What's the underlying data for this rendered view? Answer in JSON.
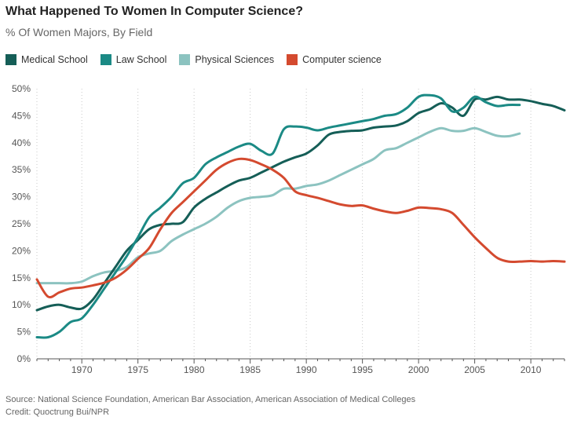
{
  "title": "What Happened To Women In Computer Science?",
  "subtitle": "% Of Women Majors, By Field",
  "source": "Source: National Science Foundation, American Bar Association, American Association of Medical Colleges",
  "credit": "Credit: Quoctrung Bui/NPR",
  "chart_data": {
    "type": "line",
    "xlim": [
      1966,
      2013
    ],
    "ylim": [
      0,
      50
    ],
    "xticks": [
      1970,
      1975,
      1980,
      1985,
      1990,
      1995,
      2000,
      2005,
      2010
    ],
    "yticks": [
      0,
      5,
      10,
      15,
      20,
      25,
      30,
      35,
      40,
      45,
      50
    ],
    "ytick_labels": [
      "0%",
      "5%",
      "10%",
      "15%",
      "20%",
      "25%",
      "30%",
      "35%",
      "40%",
      "45%",
      "50%"
    ],
    "xtick_labels": [
      "1970",
      "1975",
      "1980",
      "1985",
      "1990",
      "1995",
      "2000",
      "2005",
      "2010"
    ],
    "grid": "vertical dotted",
    "legend_position": "top-left",
    "series": [
      {
        "name": "Medical School",
        "color": "#155e57",
        "x": [
          1966,
          1967,
          1968,
          1969,
          1970,
          1971,
          1972,
          1973,
          1974,
          1975,
          1976,
          1977,
          1978,
          1979,
          1980,
          1981,
          1982,
          1983,
          1984,
          1985,
          1986,
          1987,
          1988,
          1989,
          1990,
          1991,
          1992,
          1993,
          1994,
          1995,
          1996,
          1997,
          1998,
          1999,
          2000,
          2001,
          2002,
          2003,
          2004,
          2005,
          2006,
          2007,
          2008,
          2009,
          2010,
          2011,
          2012,
          2013
        ],
        "y": [
          9,
          9.7,
          10,
          9.5,
          9.3,
          11,
          14,
          17,
          20,
          22,
          24,
          24.8,
          25,
          25.3,
          28,
          29.6,
          30.8,
          32,
          33,
          33.5,
          34.5,
          35.5,
          36.5,
          37.3,
          38,
          39.5,
          41.5,
          42,
          42.2,
          42.3,
          42.8,
          43,
          43.2,
          44,
          45.5,
          46.2,
          47.3,
          46.5,
          45,
          48,
          48,
          48.5,
          48,
          48,
          47.7,
          47.2,
          46.8,
          46
        ]
      },
      {
        "name": "Law School",
        "color": "#1b8a85",
        "x": [
          1966,
          1967,
          1968,
          1969,
          1970,
          1971,
          1972,
          1973,
          1974,
          1975,
          1976,
          1977,
          1978,
          1979,
          1980,
          1981,
          1982,
          1983,
          1984,
          1985,
          1986,
          1987,
          1988,
          1989,
          1990,
          1991,
          1992,
          1993,
          1994,
          1995,
          1996,
          1997,
          1998,
          1999,
          2000,
          2001,
          2002,
          2003,
          2004,
          2005,
          2006,
          2007,
          2008,
          2009
        ],
        "y": [
          4,
          4,
          5,
          6.8,
          7.5,
          10,
          13,
          16,
          19,
          22.5,
          26.2,
          28,
          30,
          32.5,
          33.5,
          36,
          37.3,
          38.3,
          39.3,
          39.8,
          38.5,
          38,
          42.5,
          43,
          42.8,
          42.3,
          42.8,
          43.2,
          43.6,
          44,
          44.4,
          45,
          45.3,
          46.5,
          48.5,
          48.8,
          48.2,
          45.8,
          46.5,
          48.5,
          47.5,
          46.8,
          47,
          47
        ]
      },
      {
        "name": "Physical Sciences",
        "color": "#8cc3c0",
        "x": [
          1966,
          1967,
          1968,
          1969,
          1970,
          1971,
          1972,
          1973,
          1974,
          1975,
          1976,
          1977,
          1978,
          1979,
          1980,
          1981,
          1982,
          1983,
          1984,
          1985,
          1986,
          1987,
          1988,
          1989,
          1990,
          1991,
          1992,
          1993,
          1994,
          1995,
          1996,
          1997,
          1998,
          1999,
          2000,
          2001,
          2002,
          2003,
          2004,
          2005,
          2006,
          2007,
          2008,
          2009
        ],
        "y": [
          14,
          14,
          14,
          14,
          14.3,
          15.3,
          16,
          16.3,
          17,
          18.8,
          19.5,
          20,
          21.8,
          23,
          24,
          25,
          26.3,
          28,
          29.2,
          29.8,
          30,
          30.3,
          31.5,
          31.5,
          32,
          32.3,
          33,
          34,
          35,
          36,
          37,
          38.6,
          39,
          40,
          41,
          42,
          42.7,
          42.2,
          42.2,
          42.7,
          42,
          41.3,
          41.2,
          41.7
        ]
      },
      {
        "name": "Computer science",
        "color": "#d44a2f",
        "x": [
          1966,
          1967,
          1968,
          1969,
          1970,
          1971,
          1972,
          1973,
          1974,
          1975,
          1976,
          1977,
          1978,
          1979,
          1980,
          1981,
          1982,
          1983,
          1984,
          1985,
          1986,
          1987,
          1988,
          1989,
          1990,
          1991,
          1992,
          1993,
          1994,
          1995,
          1996,
          1997,
          1998,
          1999,
          2000,
          2001,
          2002,
          2003,
          2004,
          2005,
          2006,
          2007,
          2008,
          2009,
          2010,
          2011,
          2012,
          2013
        ],
        "y": [
          14.7,
          11.5,
          12.3,
          13,
          13.2,
          13.6,
          14.1,
          15,
          16.5,
          18.5,
          20.5,
          24,
          27,
          29,
          31,
          33,
          35,
          36.3,
          37,
          36.8,
          36,
          35,
          33.5,
          31,
          30.3,
          29.8,
          29.2,
          28.6,
          28.3,
          28.4,
          27.8,
          27.3,
          27,
          27.4,
          28,
          27.9,
          27.7,
          27,
          24.8,
          22.5,
          20.5,
          18.7,
          18,
          18,
          18.1,
          18,
          18.1,
          18
        ]
      }
    ]
  }
}
